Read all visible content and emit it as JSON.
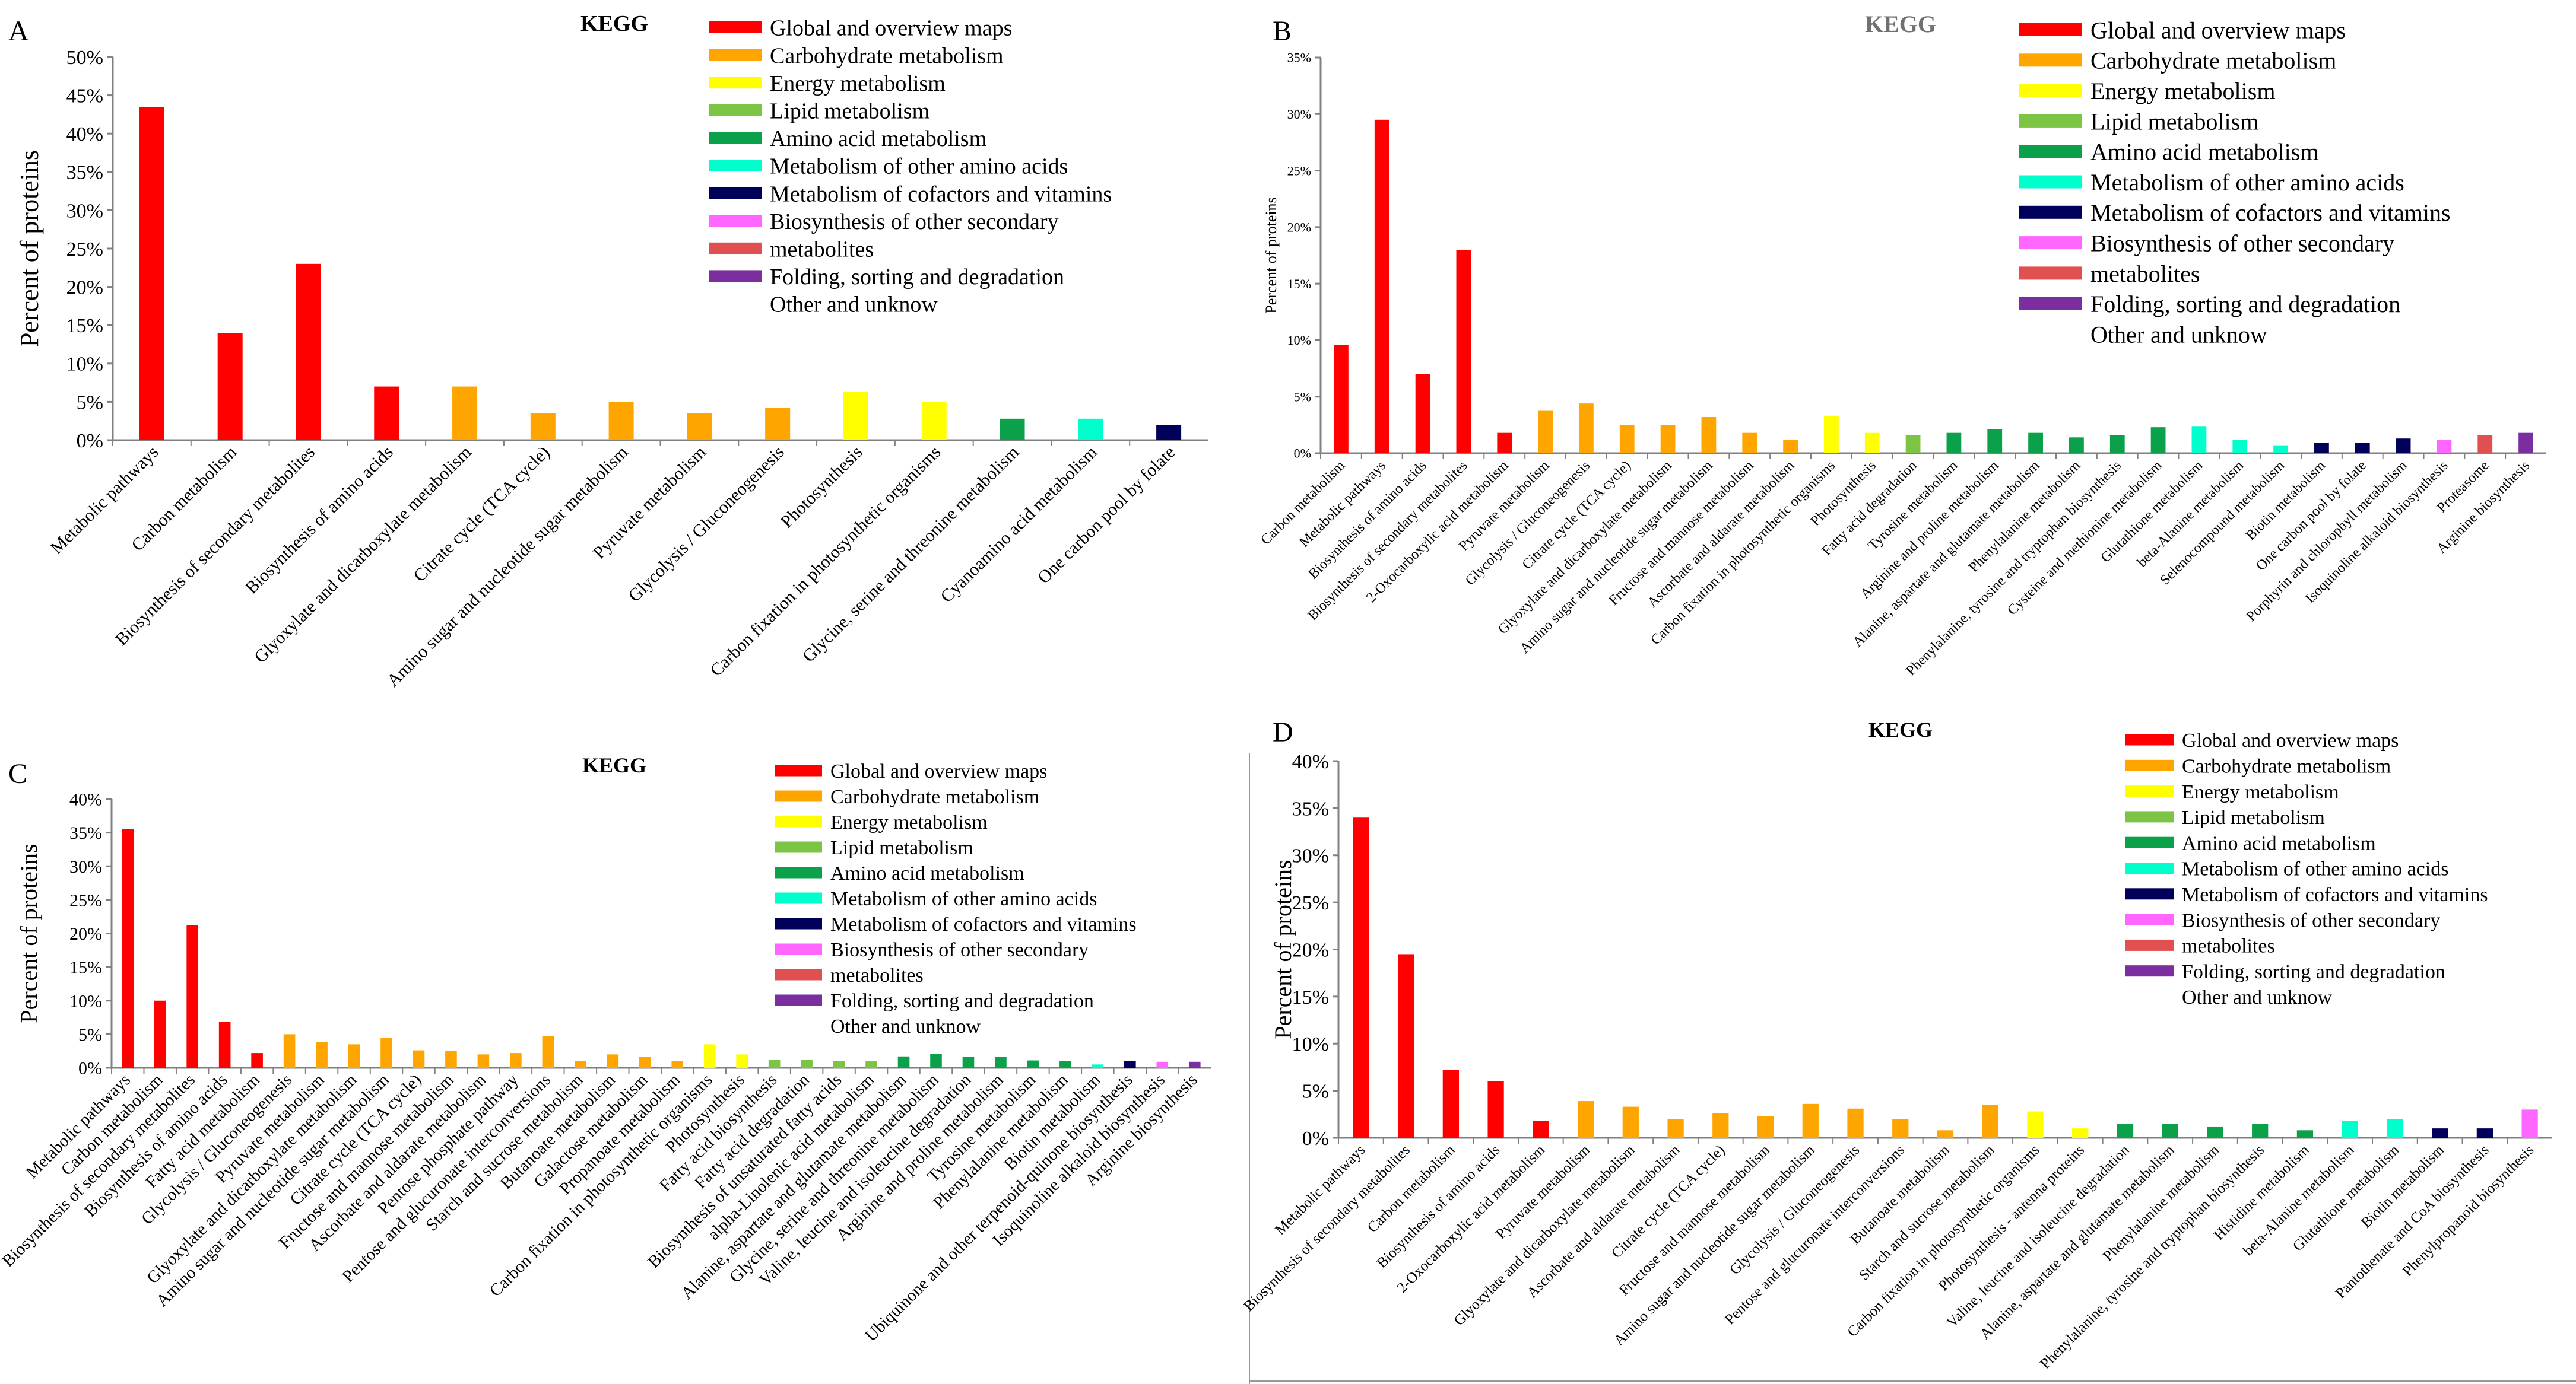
{
  "chart_data": [
    {
      "panel": "A",
      "type": "bar",
      "title": "KEGG",
      "ylabel": "Percent of proteins",
      "xlabel": "",
      "ylim": [
        0,
        50
      ],
      "yticks": [
        "0%",
        "5%",
        "10%",
        "15%",
        "20%",
        "25%",
        "30%",
        "35%",
        "40%",
        "45%",
        "50%"
      ],
      "grid": false,
      "legend_position": "top-right",
      "categories": [
        "Metabolic pathways",
        "Carbon metabolism",
        "Biosynthesis of secondary metabolites",
        "Biosynthesis of amino acids",
        "Glyoxylate and dicarboxylate metabolism",
        "Citrate cycle (TCA cycle)",
        "Amino sugar and nucleotide sugar metabolism",
        "Pyruvate metabolism",
        "Glycolysis / Gluconeogenesis",
        "Photosynthesis",
        "Carbon fixation in photosynthetic organisms",
        "Glycine, serine and threonine metabolism",
        "Cyanoamino acid metabolism",
        "One carbon pool by folate"
      ],
      "values": [
        43.5,
        14.0,
        23.0,
        7.0,
        7.0,
        3.5,
        5.0,
        3.5,
        4.2,
        6.3,
        5.0,
        2.8,
        2.8,
        2.0
      ],
      "groups": [
        0,
        0,
        0,
        0,
        1,
        1,
        1,
        1,
        1,
        2,
        2,
        4,
        5,
        6
      ]
    },
    {
      "panel": "B",
      "type": "bar",
      "title": "KEGG",
      "ylabel": "Percent of proteins",
      "xlabel": "",
      "ylim": [
        0,
        35
      ],
      "yticks": [
        "0%",
        "5%",
        "10%",
        "15%",
        "20%",
        "25%",
        "30%",
        "35%"
      ],
      "grid": false,
      "legend_position": "top-right",
      "categories": [
        "Carbon metabolism",
        "Metabolic pathways",
        "Biosynthesis of amino acids",
        "Biosynthesis of secondary metabolites",
        "2-Oxocarboxylic acid metabolism",
        "Pyruvate metabolism",
        "Glycolysis / Gluconeogenesis",
        "Citrate cycle (TCA cycle)",
        "Glyoxylate and dicarboxylate metabolism",
        "Amino sugar and nucleotide sugar metabolism",
        "Fructose and mannose metabolism",
        "Ascorbate and aldarate metabolism",
        "Carbon fixation in photosynthetic organisms",
        "Photosynthesis",
        "Fatty acid degradation",
        "Tyrosine metabolism",
        "Arginine and proline metabolism",
        "Alanine, aspartate and glutamate metabolism",
        "Phenylalanine metabolism",
        "Phenylalanine, tyrosine and tryptophan biosynthesis",
        "Cysteine and methionine metabolism",
        "Glutathione metabolism",
        "beta-Alanine metabolism",
        "Selenocompound metabolism",
        "Biotin metabolism",
        "One carbon pool by folate",
        "Porphyrin and chlorophyll metabolism",
        "Isoquinoline alkaloid biosynthesis",
        "Proteasome",
        "Arginine biosynthesis"
      ],
      "values": [
        9.6,
        29.5,
        7.0,
        18.0,
        1.8,
        3.8,
        4.4,
        2.5,
        2.5,
        3.2,
        1.8,
        1.2,
        3.3,
        1.8,
        1.6,
        1.8,
        2.1,
        1.8,
        1.4,
        1.6,
        2.3,
        2.4,
        1.2,
        0.7,
        0.9,
        0.9,
        1.3,
        1.2,
        1.6,
        1.8
      ],
      "groups": [
        0,
        0,
        0,
        0,
        0,
        1,
        1,
        1,
        1,
        1,
        1,
        1,
        2,
        2,
        3,
        4,
        4,
        4,
        4,
        4,
        4,
        5,
        5,
        5,
        6,
        6,
        6,
        7,
        8,
        9
      ]
    },
    {
      "panel": "C",
      "type": "bar",
      "title": "KEGG",
      "ylabel": "Percent of proteins",
      "xlabel": "",
      "ylim": [
        0,
        40
      ],
      "yticks": [
        "0%",
        "5%",
        "10%",
        "15%",
        "20%",
        "25%",
        "30%",
        "35%",
        "40%"
      ],
      "grid": false,
      "legend_position": "top-right",
      "categories": [
        "Metabolic pathways",
        "Carbon metabolism",
        "Biosynthesis of secondary metabolites",
        "Biosynthesis of amino acids",
        "Fatty acid metabolism",
        "Glycolysis / Gluconeogenesis",
        "Pyruvate metabolism",
        "Glyoxylate and dicarboxylate metabolism",
        "Amino sugar and nucleotide sugar metabolism",
        "Citrate cycle (TCA cycle)",
        "Fructose and mannose metabolism",
        "Ascorbate and aldarate metabolism",
        "Pentose phosphate pathway",
        "Pentose and glucuronate interconversions",
        "Starch and sucrose metabolism",
        "Butanoate metabolism",
        "Galactose metabolism",
        "Propanoate metabolism",
        "Carbon fixation in photosynthetic organisms",
        "Photosynthesis",
        "Fatty acid biosynthesis",
        "Fatty acid degradation",
        "Biosynthesis of unsaturated fatty acids",
        "alpha-Linolenic acid metabolism",
        "Alanine, aspartate and glutamate metabolism",
        "Glycine, serine and threonine metabolism",
        "Valine, leucine and isoleucine degradation",
        "Arginine and proline metabolism",
        "Tyrosine metabolism",
        "Phenylalanine metabolism",
        "Biotin metabolism",
        "Ubiquinone and other terpenoid-quinone biosynthesis",
        "Isoquinoline alkaloid biosynthesis",
        "Arginine biosynthesis"
      ],
      "values": [
        35.5,
        10.0,
        21.2,
        6.8,
        2.2,
        5.0,
        3.8,
        3.5,
        4.5,
        2.6,
        2.5,
        2.0,
        2.2,
        4.7,
        1.0,
        2.0,
        1.6,
        1.0,
        3.5,
        2.0,
        1.2,
        1.2,
        1.0,
        1.0,
        1.7,
        2.1,
        1.6,
        1.6,
        1.1,
        1.0,
        0.5,
        1.0,
        0.9,
        0.9
      ],
      "groups": [
        0,
        0,
        0,
        0,
        0,
        1,
        1,
        1,
        1,
        1,
        1,
        1,
        1,
        1,
        1,
        1,
        1,
        1,
        2,
        2,
        3,
        3,
        3,
        3,
        4,
        4,
        4,
        4,
        4,
        4,
        5,
        6,
        7,
        9
      ]
    },
    {
      "panel": "D",
      "type": "bar",
      "title": "KEGG",
      "ylabel": "Percent of proteins",
      "xlabel": "",
      "ylim": [
        0,
        40
      ],
      "yticks": [
        "0%",
        "5%",
        "10%",
        "15%",
        "20%",
        "25%",
        "30%",
        "35%",
        "40%"
      ],
      "grid": false,
      "legend_position": "top-right",
      "categories": [
        "Metabolic pathways",
        "Biosynthesis of secondary metabolites",
        "Carbon metabolism",
        "Biosynthesis of amino acids",
        "2-Oxocarboxylic acid metabolism",
        "Pyruvate metabolism",
        "Glyoxylate and dicarboxylate metabolism",
        "Ascorbate and aldarate metabolism",
        "Citrate cycle (TCA cycle)",
        "Fructose and mannose metabolism",
        "Amino sugar and nucleotide sugar metabolism",
        "Glycolysis / Gluconeogenesis",
        "Pentose and glucuronate interconversions",
        "Butanoate metabolism",
        "Starch and sucrose metabolism",
        "Carbon fixation in photosynthetic organisms",
        "Photosynthesis - antenna proteins",
        "Valine, leucine and isoleucine degradation",
        "Alanine, aspartate and glutamate metabolism",
        "Phenylalanine metabolism",
        "Phenylalanine, tyrosine and tryptophan biosynthesis",
        "Histidine metabolism",
        "beta-Alanine metabolism",
        "Glutathione metabolism",
        "Biotin metabolism",
        "Pantothenate and CoA biosynthesis",
        "Phenylpropanoid biosynthesis"
      ],
      "values": [
        34.0,
        19.5,
        7.2,
        6.0,
        1.8,
        3.9,
        3.3,
        2.0,
        2.6,
        2.3,
        3.6,
        3.1,
        2.0,
        0.8,
        3.5,
        2.8,
        1.0,
        1.5,
        1.5,
        1.2,
        1.5,
        0.8,
        1.8,
        2.0,
        1.0,
        1.0,
        3.0
      ],
      "groups": [
        0,
        0,
        0,
        0,
        0,
        1,
        1,
        1,
        1,
        1,
        1,
        1,
        1,
        1,
        1,
        2,
        2,
        4,
        4,
        4,
        4,
        4,
        5,
        5,
        6,
        6,
        7
      ]
    }
  ],
  "legend_entries": [
    "Global and overview maps",
    "Carbohydrate metabolism",
    "Energy metabolism",
    "Lipid metabolism",
    "Amino acid metabolism",
    "Metabolism of other amino acids",
    "Metabolism of cofactors and vitamins",
    "Biosynthesis of other secondary",
    "metabolites",
    "Folding, sorting and degradation",
    "Other and unknow"
  ],
  "group_colors": [
    "#ff0000",
    "#ffa500",
    "#ffff00",
    "#7cc444",
    "#0aa14a",
    "#00ffcc",
    "#00005a",
    "#ff66ff",
    "#e05050",
    "#7a2ea0"
  ],
  "legend_swatch_colors": [
    "#ff0000",
    "#ffa500",
    "#ffff00",
    "#7cc444",
    "#0aa14a",
    "#00ffcc",
    "#00005a",
    "#ff66ff",
    "#e05050",
    "#7a2ea0"
  ]
}
